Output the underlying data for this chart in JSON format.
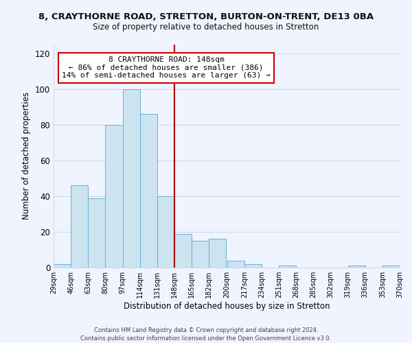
{
  "title": "8, CRAYTHORNE ROAD, STRETTON, BURTON-ON-TRENT, DE13 0BA",
  "subtitle": "Size of property relative to detached houses in Stretton",
  "xlabel": "Distribution of detached houses by size in Stretton",
  "ylabel": "Number of detached properties",
  "bin_edges": [
    29,
    46,
    63,
    80,
    97,
    114,
    131,
    148,
    165,
    182,
    200,
    217,
    234,
    251,
    268,
    285,
    302,
    319,
    336,
    353,
    370
  ],
  "bar_heights": [
    2,
    46,
    39,
    80,
    100,
    86,
    40,
    19,
    15,
    16,
    4,
    2,
    0,
    1,
    0,
    0,
    0,
    1,
    0,
    1
  ],
  "bar_color": "#cce4f0",
  "bar_edge_color": "#6baed6",
  "property_line_x": 148,
  "property_line_color": "#aa0000",
  "ylim": [
    0,
    125
  ],
  "yticks": [
    0,
    20,
    40,
    60,
    80,
    100,
    120
  ],
  "annotation_title": "8 CRAYTHORNE ROAD: 148sqm",
  "annotation_line1": "← 86% of detached houses are smaller (386)",
  "annotation_line2": "14% of semi-detached houses are larger (63) →",
  "annotation_box_color": "#ffffff",
  "annotation_box_edge_color": "#cc0000",
  "footnote1": "Contains HM Land Registry data © Crown copyright and database right 2024.",
  "footnote2": "Contains public sector information licensed under the Open Government Licence v3.0.",
  "bg_color": "#f0f4ff",
  "grid_color": "#d0d8e8"
}
